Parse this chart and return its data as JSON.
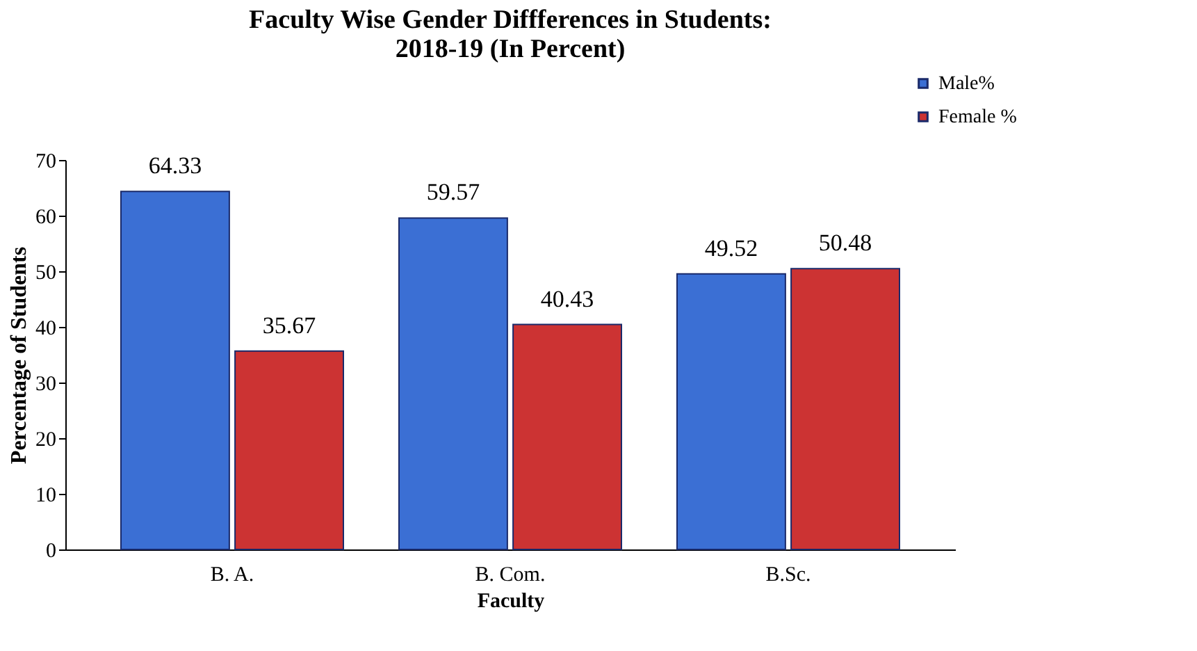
{
  "chart_data": {
    "type": "bar",
    "title": "Faculty Wise Gender Diffferences in Students:\n2018-19 (In Percent)",
    "xlabel": "Faculty",
    "ylabel": "Percentage of Students",
    "categories": [
      "B. A.",
      "B. Com.",
      "B.Sc."
    ],
    "series": [
      {
        "name": "Male%",
        "color": "#3b6fd4",
        "values": [
          64.33,
          59.57,
          49.52
        ]
      },
      {
        "name": "Female %",
        "color": "#cc3333",
        "values": [
          35.67,
          40.43,
          50.48
        ]
      }
    ],
    "ylim": [
      0,
      70
    ],
    "yticks": [
      0,
      10,
      20,
      30,
      40,
      50,
      60,
      70
    ],
    "grid": false,
    "legend": "top right",
    "data_labels": true
  }
}
